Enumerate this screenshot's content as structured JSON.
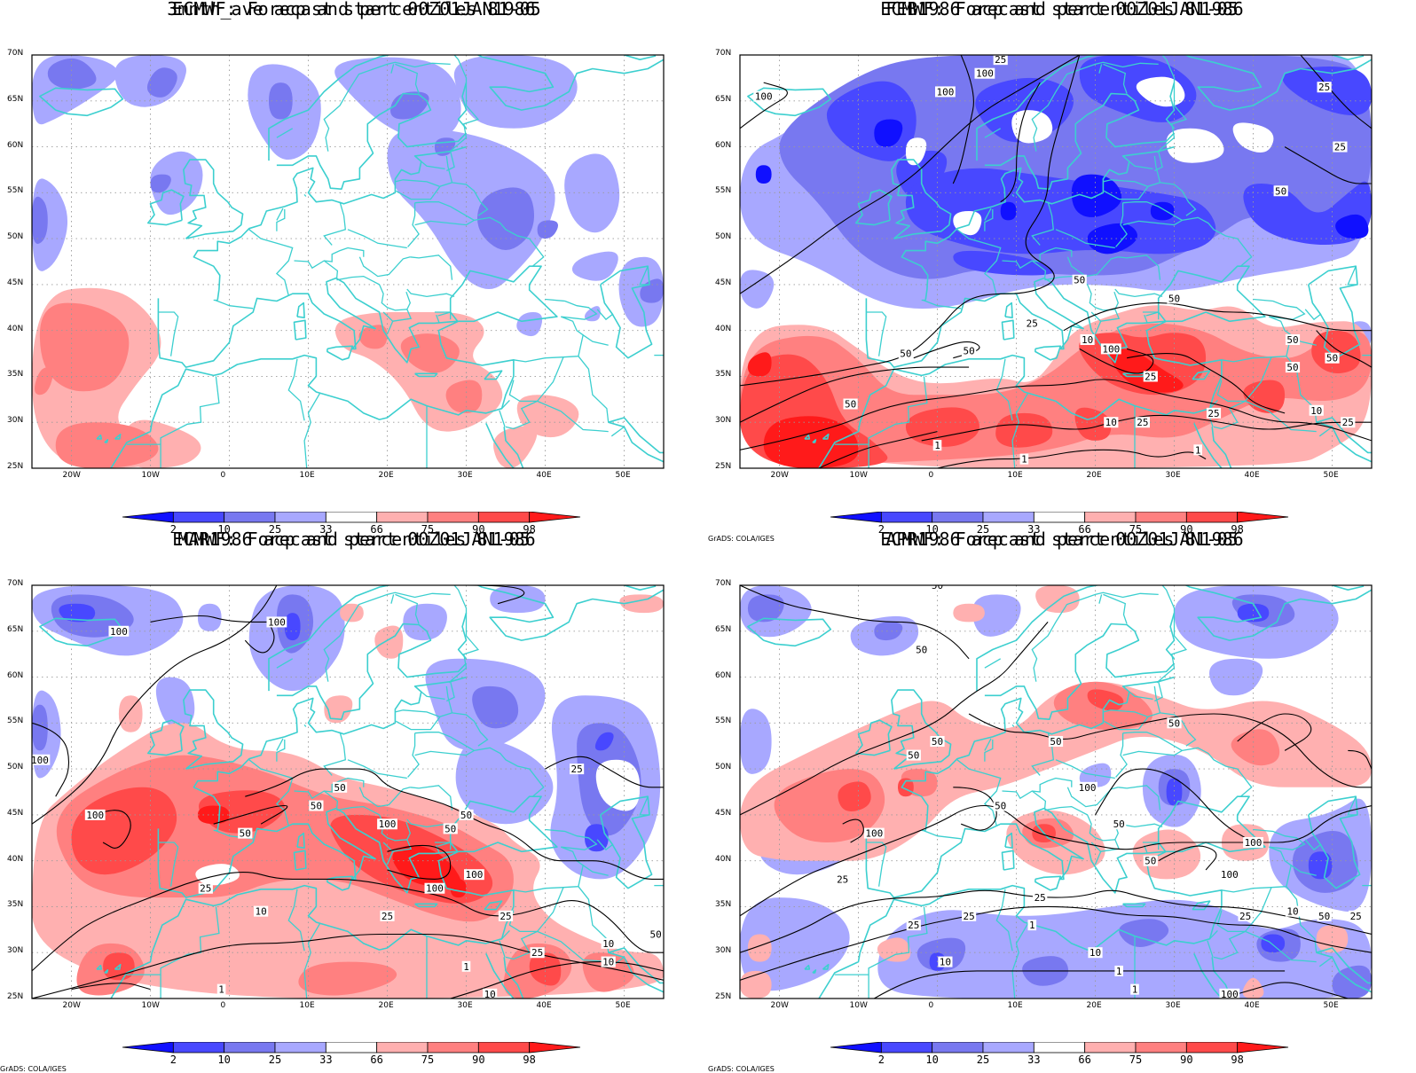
{
  "colors": {
    "ocean_bg": "#ffffff",
    "coast": "#3ccfcf",
    "contour": "#000000",
    "levels": [
      "#1010ff",
      "#4848ff",
      "#7878f0",
      "#a8a8ff",
      "#ffffff",
      "#ffb0b0",
      "#ff8080",
      "#ff4a4a",
      "#ff1a1a"
    ]
  },
  "axes": {
    "lat_labels": [
      "70N",
      "65N",
      "60N",
      "55N",
      "50N",
      "45N",
      "40N",
      "35N",
      "30N",
      "25N"
    ],
    "lon_labels": [
      "20W",
      "10W",
      "0",
      "10E",
      "20E",
      "30E",
      "40E",
      "50E"
    ]
  },
  "colorbar": {
    "labels": [
      "2",
      "10",
      "25",
      "33",
      "66",
      "75",
      "90",
      "98"
    ]
  },
  "credit": "GrADS: COLA/IGES",
  "panels": [
    {
      "title_line1": "3mnth_ave acp and percentiles 81-05",
      "title_line2": "ECMWF: Forecast start 00Z01JAN1986",
      "credit": "",
      "contour_labels": []
    },
    {
      "title_line1": "FEB1986 acp and percentiles 81-05",
      "title_line2": "ECMWF: Forecast start 00Z01JAN1986",
      "credit": "GrADS: COLA/IGES",
      "contour_labels": [
        "100",
        "100",
        "100",
        "25",
        "25",
        "25",
        "50",
        "50",
        "50",
        "50",
        "25",
        "50",
        "100",
        "50",
        "10",
        "25",
        "10",
        "25",
        "1",
        "1",
        "25",
        "50",
        "50",
        "10",
        "25",
        "1",
        "50"
      ]
    },
    {
      "title_line1": "MAR1986 acp and percentiles 81-05",
      "title_line2": "ECMWF: Forecast start 00Z01JAN1986",
      "credit": "GrADS: COLA/IGES",
      "contour_labels": [
        "100",
        "100",
        "100",
        "50",
        "100",
        "50",
        "50",
        "100",
        "50",
        "50",
        "100",
        "25",
        "10",
        "25",
        "10",
        "25",
        "1",
        "10",
        "25",
        "50",
        "1",
        "100",
        "25",
        "10"
      ]
    },
    {
      "title_line1": "APR1986 acp and percentiles 81-05",
      "title_line2": "ECMWF: Forecast start 00Z01JAN1986",
      "credit": "GrADS: COLA/IGES",
      "contour_labels": [
        "50",
        "50",
        "50",
        "50",
        "50",
        "50",
        "100",
        "100",
        "50",
        "100",
        "25",
        "25",
        "50",
        "25",
        "50",
        "100",
        "10",
        "25",
        "1",
        "10",
        "50",
        "25",
        "10",
        "1",
        "1",
        "100",
        "25"
      ]
    }
  ]
}
